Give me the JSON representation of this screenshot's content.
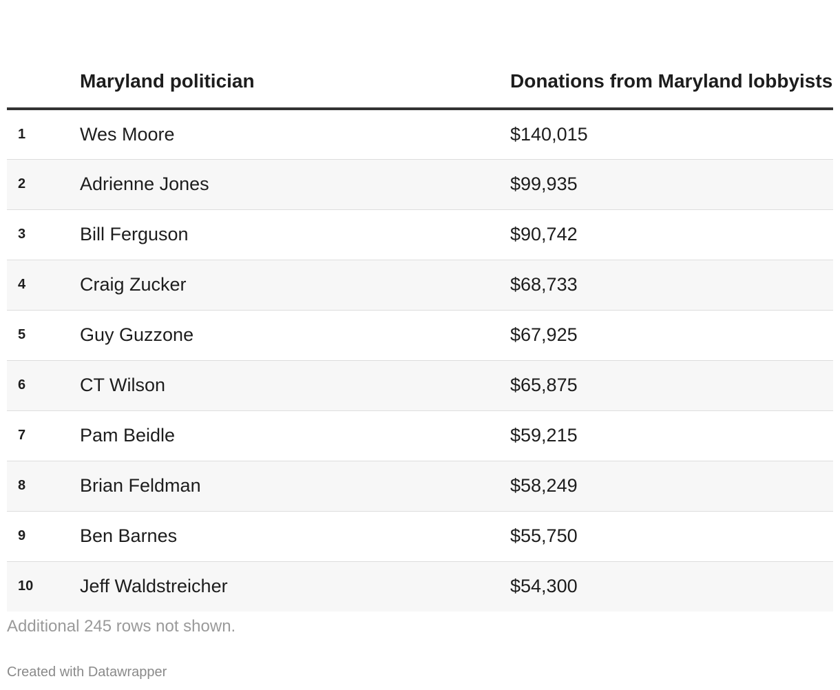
{
  "table": {
    "headers": [
      "",
      "Maryland politician",
      "Donations from Maryland lobbyists"
    ],
    "rows": [
      {
        "rank": "1",
        "name": "Wes Moore",
        "amount": "$140,015"
      },
      {
        "rank": "2",
        "name": "Adrienne Jones",
        "amount": "$99,935"
      },
      {
        "rank": "3",
        "name": "Bill Ferguson",
        "amount": "$90,742"
      },
      {
        "rank": "4",
        "name": "Craig Zucker",
        "amount": "$68,733"
      },
      {
        "rank": "5",
        "name": "Guy Guzzone",
        "amount": "$67,925"
      },
      {
        "rank": "6",
        "name": "CT Wilson",
        "amount": "$65,875"
      },
      {
        "rank": "7",
        "name": "Pam Beidle",
        "amount": "$59,215"
      },
      {
        "rank": "8",
        "name": "Brian Feldman",
        "amount": "$58,249"
      },
      {
        "rank": "9",
        "name": "Ben Barnes",
        "amount": "$55,750"
      },
      {
        "rank": "10",
        "name": "Jeff Waldstreicher",
        "amount": "$54,300"
      }
    ],
    "note": "Additional 245 rows not shown."
  },
  "footer": {
    "credit": "Created with Datawrapper"
  },
  "chart_data": {
    "type": "table",
    "columns": [
      "",
      "Maryland politician",
      "Donations from Maryland lobbyists"
    ],
    "rows": [
      [
        "1",
        "Wes Moore",
        140015
      ],
      [
        "2",
        "Adrienne Jones",
        99935
      ],
      [
        "3",
        "Bill Ferguson",
        90742
      ],
      [
        "4",
        "Craig Zucker",
        68733
      ],
      [
        "5",
        "Guy Guzzone",
        67925
      ],
      [
        "6",
        "CT Wilson",
        65875
      ],
      [
        "7",
        "Pam Beidle",
        59215
      ],
      [
        "8",
        "Brian Feldman",
        58249
      ],
      [
        "9",
        "Ben Barnes",
        55750
      ],
      [
        "10",
        "Jeff Waldstreicher",
        54300
      ]
    ]
  }
}
